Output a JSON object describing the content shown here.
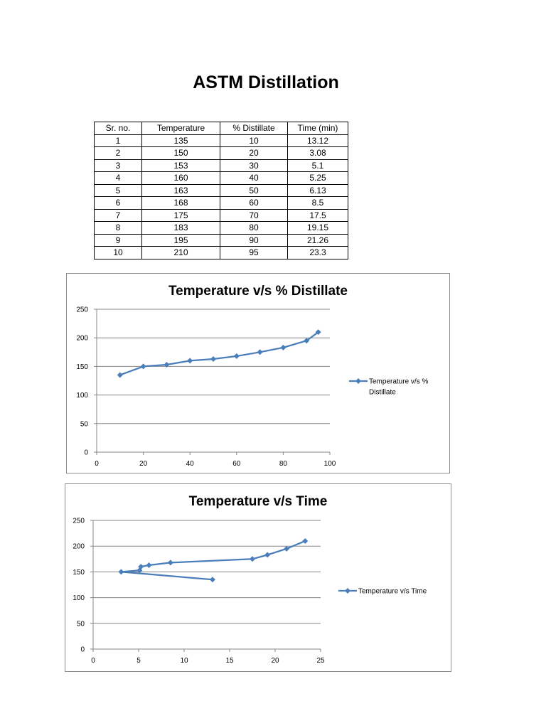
{
  "document": {
    "title": "ASTM Distillation"
  },
  "table": {
    "headers": [
      "Sr. no.",
      "Temperature",
      "% Distillate",
      "Time (min)"
    ],
    "rows": [
      [
        "1",
        "135",
        "10",
        "13.12"
      ],
      [
        "2",
        "150",
        "20",
        "3.08"
      ],
      [
        "3",
        "153",
        "30",
        "5.1"
      ],
      [
        "4",
        "160",
        "40",
        "5.25"
      ],
      [
        "5",
        "163",
        "50",
        "6.13"
      ],
      [
        "6",
        "168",
        "60",
        "8.5"
      ],
      [
        "7",
        "175",
        "70",
        "17.5"
      ],
      [
        "8",
        "183",
        "80",
        "19.15"
      ],
      [
        "9",
        "195",
        "90",
        "21.26"
      ],
      [
        "10",
        "210",
        "95",
        "23.3"
      ]
    ]
  },
  "chart_data": [
    {
      "type": "line",
      "title": "Temperature v/s % Distillate",
      "xlabel": "",
      "ylabel": "",
      "xlim": [
        0,
        100
      ],
      "ylim": [
        0,
        250
      ],
      "xticks": [
        "0",
        "20",
        "40",
        "60",
        "80",
        "100"
      ],
      "yticks": [
        "0",
        "50",
        "100",
        "150",
        "200",
        "250"
      ],
      "grid": "horizontal",
      "legend_position": "right",
      "series_color": "#4a7ebb",
      "series": [
        {
          "name": "Temperature v/s % Distillate",
          "legend_lines": [
            "Temperature v/s %",
            "Distillate"
          ],
          "x": [
            10,
            20,
            30,
            40,
            50,
            60,
            70,
            80,
            90,
            95
          ],
          "y": [
            135,
            150,
            153,
            160,
            163,
            168,
            175,
            183,
            195,
            210
          ]
        }
      ]
    },
    {
      "type": "line",
      "title": "Temperature v/s Time",
      "xlabel": "",
      "ylabel": "",
      "xlim": [
        0,
        25
      ],
      "ylim": [
        0,
        250
      ],
      "xticks": [
        "0",
        "5",
        "10",
        "15",
        "20",
        "25"
      ],
      "yticks": [
        "0",
        "50",
        "100",
        "150",
        "200",
        "250"
      ],
      "grid": "horizontal",
      "legend_position": "right",
      "series_color": "#4a7ebb",
      "series": [
        {
          "name": "Temperature v/s Time",
          "legend_lines": [
            "Temperature v/s Time"
          ],
          "x": [
            13.12,
            3.08,
            5.1,
            5.25,
            6.13,
            8.5,
            17.5,
            19.15,
            21.26,
            23.3
          ],
          "y": [
            135,
            150,
            153,
            160,
            163,
            168,
            175,
            183,
            195,
            210
          ]
        }
      ]
    }
  ]
}
